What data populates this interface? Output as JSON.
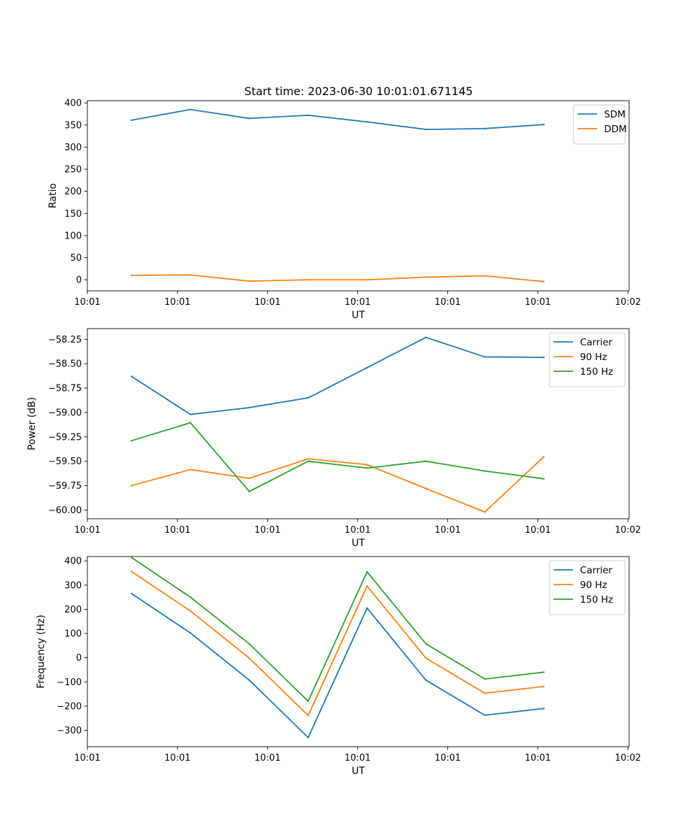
{
  "figure": {
    "title": "Start time: 2023-06-30 10:01:01.671145"
  },
  "chart_data": [
    {
      "type": "line",
      "xlabel": "UT",
      "ylabel": "Ratio",
      "x": [
        0,
        1,
        2,
        3,
        4,
        5,
        6,
        7
      ],
      "xlim": [
        -0.75,
        8.45
      ],
      "xticks": [
        -0.75,
        0.78,
        2.31,
        3.84,
        5.37,
        6.9,
        8.43
      ],
      "xtick_labels": [
        "10:01",
        "10:01",
        "10:01",
        "10:01",
        "10:01",
        "10:01",
        "10:02"
      ],
      "ylim": [
        -25,
        405
      ],
      "yticks": [
        0,
        50,
        100,
        150,
        200,
        250,
        300,
        350,
        400
      ],
      "ytick_labels": [
        "0",
        "50",
        "100",
        "150",
        "200",
        "250",
        "300",
        "350",
        "400"
      ],
      "legend": "top-right",
      "series": [
        {
          "name": "SDM",
          "color": "#1f77b4",
          "values": [
            361,
            385,
            365,
            372,
            357,
            340,
            342,
            351
          ]
        },
        {
          "name": "DDM",
          "color": "#ff7f0e",
          "values": [
            10,
            11,
            -3,
            0,
            0,
            6,
            9,
            -4
          ]
        }
      ]
    },
    {
      "type": "line",
      "xlabel": "UT",
      "ylabel": "Power (dB)",
      "x": [
        0,
        1,
        2,
        3,
        4,
        5,
        6,
        7
      ],
      "xlim": [
        -0.75,
        8.45
      ],
      "xticks": [
        -0.75,
        0.78,
        2.31,
        3.84,
        5.37,
        6.9,
        8.43
      ],
      "xtick_labels": [
        "10:01",
        "10:01",
        "10:01",
        "10:01",
        "10:01",
        "10:01",
        "10:02"
      ],
      "ylim": [
        -60.09,
        -58.14
      ],
      "yticks": [
        -60.0,
        -59.75,
        -59.5,
        -59.25,
        -59.0,
        -58.75,
        -58.5,
        -58.25
      ],
      "ytick_labels": [
        "−60.00",
        "−59.75",
        "−59.50",
        "−59.25",
        "−59.00",
        "−58.75",
        "−58.50",
        "−58.25"
      ],
      "legend": "top-right",
      "series": [
        {
          "name": "Carrier",
          "color": "#1f77b4",
          "values": [
            -58.63,
            -59.02,
            -58.95,
            -58.85,
            -58.54,
            -58.23,
            -58.43,
            -58.435
          ]
        },
        {
          "name": "90 Hz",
          "color": "#ff7f0e",
          "values": [
            -59.75,
            -59.585,
            -59.675,
            -59.475,
            -59.535,
            -59.78,
            -60.02,
            -59.455
          ]
        },
        {
          "name": "150 Hz",
          "color": "#2ca02c",
          "values": [
            -59.29,
            -59.105,
            -59.81,
            -59.5,
            -59.57,
            -59.5,
            -59.6,
            -59.68
          ]
        }
      ]
    },
    {
      "type": "line",
      "xlabel": "UT",
      "ylabel": "Frequency (Hz)",
      "x": [
        0,
        1,
        2,
        3,
        4,
        5,
        6,
        7
      ],
      "xlim": [
        -0.75,
        8.45
      ],
      "xticks": [
        -0.75,
        0.78,
        2.31,
        3.84,
        5.37,
        6.9,
        8.43
      ],
      "xtick_labels": [
        "10:01",
        "10:01",
        "10:01",
        "10:01",
        "10:01",
        "10:01",
        "10:02"
      ],
      "ylim": [
        -368,
        418
      ],
      "yticks": [
        -300,
        -200,
        -100,
        0,
        100,
        200,
        300,
        400
      ],
      "ytick_labels": [
        "−300",
        "−200",
        "−100",
        "0",
        "100",
        "200",
        "300",
        "400"
      ],
      "legend": "top-right",
      "series": [
        {
          "name": "Carrier",
          "color": "#1f77b4",
          "values": [
            265,
            102,
            -93,
            -330,
            205,
            -93,
            -238,
            -210
          ]
        },
        {
          "name": "90 Hz",
          "color": "#ff7f0e",
          "values": [
            356,
            193,
            -2,
            -239,
            296,
            -2,
            -147,
            -119
          ]
        },
        {
          "name": "150 Hz",
          "color": "#2ca02c",
          "values": [
            414,
            250,
            57,
            -180,
            355,
            57,
            -88,
            -60
          ]
        }
      ]
    }
  ]
}
